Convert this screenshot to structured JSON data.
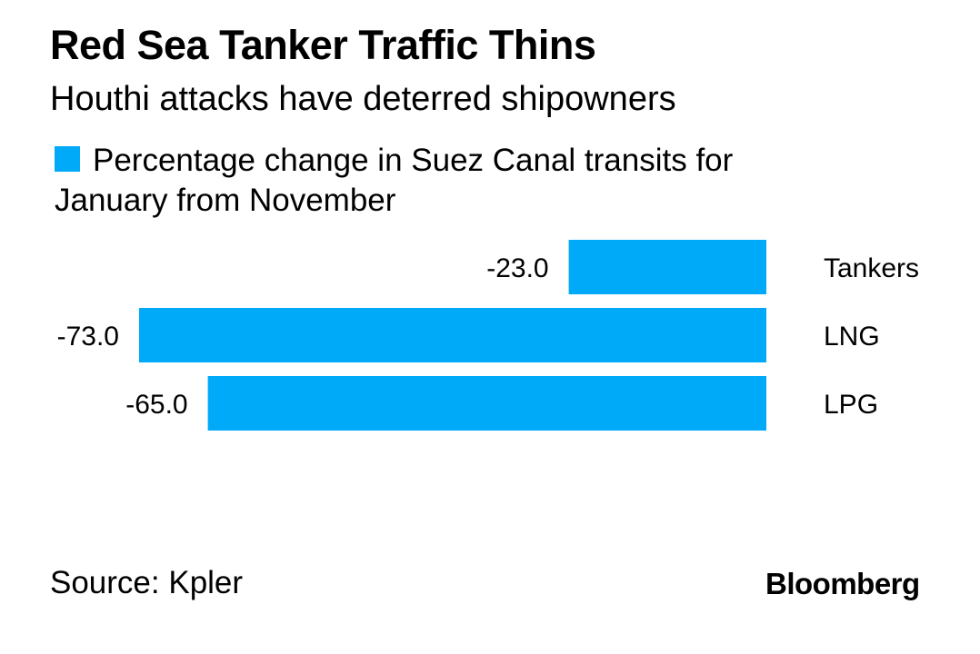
{
  "title": "Red Sea Tanker Traffic Thins",
  "subtitle": "Houthi attacks have deterred shipowners",
  "source": "Source: Kpler",
  "brand": "Bloomberg",
  "colors": {
    "bar": "#00aaf8",
    "text": "#000000",
    "background": "#ffffff"
  },
  "chart_data": {
    "type": "bar",
    "orientation": "horizontal",
    "categories": [
      "Tankers",
      "LNG",
      "LPG"
    ],
    "series": [
      {
        "name": "Percentage change in Suez Canal transits for January from November",
        "values": [
          -23.0,
          -73.0,
          -65.0
        ],
        "labels": [
          "-23.0",
          "-73.0",
          "-65.0"
        ]
      }
    ],
    "title": "Red Sea Tanker Traffic Thins",
    "subtitle": "Houthi attacks have deterred shipowners",
    "xlabel": "",
    "ylabel": "",
    "xlim": [
      -73,
      0
    ],
    "grid": false,
    "legend": "top-left"
  }
}
